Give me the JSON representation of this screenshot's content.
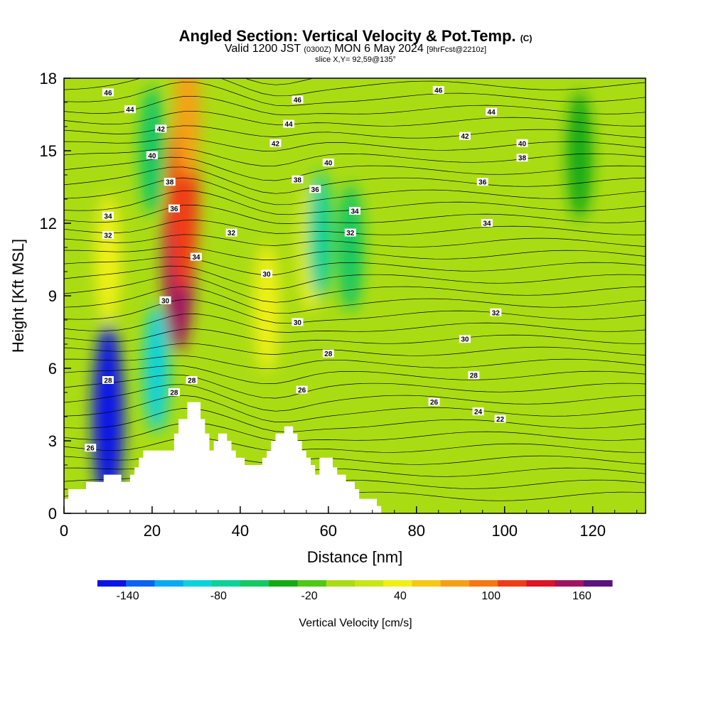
{
  "titles": {
    "main": "Angled Section: Vertical Velocity & Pot.Temp.",
    "main_unit": "(C)",
    "valid_prefix": "Valid 1200 JST",
    "valid_z": "(0300Z)",
    "valid_date": "MON 6 May 2024",
    "fcst": "[9hrFcst@2210z]",
    "slice": "slice X,Y= 92,59@135°"
  },
  "chart_data": {
    "type": "heatmap",
    "xlabel": "Distance [nm]",
    "ylabel": "Height [Kft MSL]",
    "xlim": [
      0,
      132
    ],
    "ylim": [
      0,
      18
    ],
    "x_ticks": [
      0,
      20,
      40,
      60,
      80,
      100,
      120
    ],
    "y_ticks": [
      0,
      3,
      6,
      9,
      12,
      15,
      18
    ],
    "colorbar": {
      "label": "Vertical Velocity [cm/s]",
      "min": -160,
      "max": 180,
      "step": 20,
      "tick_values": [
        -140,
        -80,
        -20,
        40,
        100,
        160
      ],
      "colors": [
        "#0a14e6",
        "#0a64f0",
        "#0aaaf0",
        "#0ad2dc",
        "#0ad29a",
        "#14c864",
        "#14aa14",
        "#50c814",
        "#aadc14",
        "#c8e614",
        "#f0f014",
        "#f5c814",
        "#f5a014",
        "#f57814",
        "#f03c14",
        "#dc1428",
        "#a01460",
        "#5a147d"
      ]
    },
    "velocity_features": [
      {
        "x": 26,
        "y": 10.5,
        "value": 170
      },
      {
        "x": 27,
        "y": 13,
        "value": 120
      },
      {
        "x": 28,
        "y": 16.5,
        "value": 90
      },
      {
        "x": 46,
        "y": 8.5,
        "value": 50
      },
      {
        "x": 56,
        "y": 11,
        "value": 50
      },
      {
        "x": 10,
        "y": 10.5,
        "value": 40
      },
      {
        "x": 10,
        "y": 4,
        "value": -150
      },
      {
        "x": 21,
        "y": 6,
        "value": -100
      },
      {
        "x": 20,
        "y": 15,
        "value": -60
      },
      {
        "x": 58,
        "y": 11.5,
        "value": -80
      },
      {
        "x": 65,
        "y": 11,
        "value": -50
      },
      {
        "x": 117,
        "y": 14.8,
        "value": -40
      }
    ],
    "theta_contour_labels": [
      {
        "x": 10,
        "y": 17.4,
        "text": "46"
      },
      {
        "x": 15,
        "y": 16.7,
        "text": "44"
      },
      {
        "x": 22,
        "y": 15.9,
        "text": "42"
      },
      {
        "x": 20,
        "y": 14.8,
        "text": "40"
      },
      {
        "x": 24,
        "y": 13.7,
        "text": "38"
      },
      {
        "x": 25,
        "y": 12.6,
        "text": "36"
      },
      {
        "x": 10,
        "y": 12.3,
        "text": "34"
      },
      {
        "x": 10,
        "y": 11.5,
        "text": "32"
      },
      {
        "x": 30,
        "y": 10.6,
        "text": "34"
      },
      {
        "x": 23,
        "y": 8.8,
        "text": "30"
      },
      {
        "x": 10,
        "y": 5.5,
        "text": "28"
      },
      {
        "x": 25,
        "y": 5,
        "text": "28"
      },
      {
        "x": 29,
        "y": 5.5,
        "text": "28"
      },
      {
        "x": 6,
        "y": 2.7,
        "text": "26"
      },
      {
        "x": 53,
        "y": 17.1,
        "text": "46"
      },
      {
        "x": 51,
        "y": 16.1,
        "text": "44"
      },
      {
        "x": 48,
        "y": 15.3,
        "text": "42"
      },
      {
        "x": 60,
        "y": 14.5,
        "text": "40"
      },
      {
        "x": 53,
        "y": 13.8,
        "text": "38"
      },
      {
        "x": 57,
        "y": 13.4,
        "text": "36"
      },
      {
        "x": 66,
        "y": 12.5,
        "text": "34"
      },
      {
        "x": 65,
        "y": 11.6,
        "text": "32"
      },
      {
        "x": 38,
        "y": 11.6,
        "text": "32"
      },
      {
        "x": 46,
        "y": 9.9,
        "text": "30"
      },
      {
        "x": 53,
        "y": 7.9,
        "text": "30"
      },
      {
        "x": 60,
        "y": 6.6,
        "text": "28"
      },
      {
        "x": 54,
        "y": 5.1,
        "text": "26"
      },
      {
        "x": 85,
        "y": 17.5,
        "text": "46"
      },
      {
        "x": 97,
        "y": 16.6,
        "text": "44"
      },
      {
        "x": 91,
        "y": 15.6,
        "text": "42"
      },
      {
        "x": 104,
        "y": 15.3,
        "text": "40"
      },
      {
        "x": 104,
        "y": 14.7,
        "text": "38"
      },
      {
        "x": 95,
        "y": 13.7,
        "text": "36"
      },
      {
        "x": 96,
        "y": 12,
        "text": "34"
      },
      {
        "x": 98,
        "y": 8.3,
        "text": "32"
      },
      {
        "x": 91,
        "y": 7.2,
        "text": "30"
      },
      {
        "x": 93,
        "y": 5.7,
        "text": "28"
      },
      {
        "x": 84,
        "y": 4.6,
        "text": "26"
      },
      {
        "x": 94,
        "y": 4.2,
        "text": "24"
      },
      {
        "x": 99,
        "y": 3.9,
        "text": "22"
      }
    ],
    "terrain": [
      [
        0,
        0.6
      ],
      [
        1,
        0.6
      ],
      [
        1,
        1
      ],
      [
        5,
        1
      ],
      [
        5,
        1.3
      ],
      [
        9,
        1.3
      ],
      [
        9,
        1.6
      ],
      [
        13,
        1.6
      ],
      [
        13,
        1.3
      ],
      [
        15,
        1.3
      ],
      [
        15,
        1.6
      ],
      [
        16,
        1.6
      ],
      [
        16,
        1.9
      ],
      [
        17,
        1.9
      ],
      [
        17,
        2.3
      ],
      [
        18,
        2.3
      ],
      [
        18,
        2.6
      ],
      [
        25,
        2.6
      ],
      [
        25,
        3.3
      ],
      [
        26,
        3.3
      ],
      [
        26,
        3.9
      ],
      [
        28,
        3.9
      ],
      [
        28,
        4.6
      ],
      [
        31,
        4.6
      ],
      [
        31,
        3.9
      ],
      [
        32,
        3.9
      ],
      [
        32,
        3.3
      ],
      [
        33,
        3.3
      ],
      [
        33,
        2.6
      ],
      [
        34,
        2.6
      ],
      [
        34,
        3
      ],
      [
        35,
        3
      ],
      [
        35,
        3.3
      ],
      [
        37,
        3.3
      ],
      [
        37,
        3
      ],
      [
        38,
        3
      ],
      [
        38,
        2.6
      ],
      [
        39,
        2.6
      ],
      [
        39,
        2.3
      ],
      [
        41,
        2.3
      ],
      [
        41,
        2
      ],
      [
        45,
        2
      ],
      [
        45,
        2.3
      ],
      [
        46,
        2.3
      ],
      [
        46,
        2.6
      ],
      [
        47,
        2.6
      ],
      [
        47,
        3
      ],
      [
        48,
        3
      ],
      [
        48,
        3.3
      ],
      [
        50,
        3.3
      ],
      [
        50,
        3.6
      ],
      [
        52,
        3.6
      ],
      [
        52,
        3.3
      ],
      [
        53,
        3.3
      ],
      [
        53,
        3
      ],
      [
        54,
        3
      ],
      [
        54,
        2.6
      ],
      [
        55,
        2.6
      ],
      [
        55,
        2.3
      ],
      [
        56,
        2.3
      ],
      [
        56,
        2
      ],
      [
        57,
        2
      ],
      [
        57,
        1.6
      ],
      [
        58,
        1.6
      ],
      [
        58,
        2.3
      ],
      [
        61,
        2.3
      ],
      [
        61,
        1.9
      ],
      [
        62,
        1.9
      ],
      [
        62,
        1.6
      ],
      [
        64,
        1.6
      ],
      [
        64,
        1.3
      ],
      [
        66,
        1.3
      ],
      [
        66,
        1
      ],
      [
        67,
        1
      ],
      [
        67,
        0.6
      ],
      [
        71,
        0.6
      ],
      [
        71,
        0.3
      ],
      [
        72,
        0.3
      ],
      [
        72,
        0
      ],
      [
        0,
        0
      ]
    ]
  }
}
